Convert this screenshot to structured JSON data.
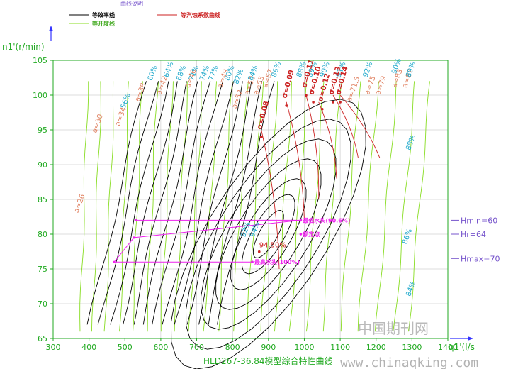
{
  "legend": {
    "header": "曲线说明",
    "efficiency": "等效率线",
    "opening": "等开度线",
    "cavitation": "等汽蚀系数曲线"
  },
  "colors": {
    "axis": "#22aa22",
    "efficiency": "#000000",
    "opening": "#88dd22",
    "cavitation": "#cc2222",
    "eff_label": "#22aacc",
    "open_label": "#e08060",
    "head": "#7755cc",
    "operating": "#ee22ee",
    "arrow": "#3333ff",
    "grid": "#bbbbbb"
  },
  "watermark": {
    "text": "中国期刊网",
    "url": "www.chinaqking.com"
  },
  "chart_data": {
    "type": "line",
    "title": "HLD267-36.84模型综合特性曲线",
    "xlabel": "q1'(l/s",
    "ylabel": "n1'(r/min)",
    "xlim": [
      300,
      1400
    ],
    "ylim": [
      65,
      105
    ],
    "xticks": [
      300,
      400,
      500,
      600,
      700,
      800,
      900,
      1000,
      1100,
      1200,
      1300,
      1400
    ],
    "yticks": [
      65,
      70,
      75,
      80,
      85,
      90,
      95,
      100,
      105
    ],
    "grid": true,
    "opening_labels": [
      {
        "text": "a=26",
        "x": 370,
        "y": 83
      },
      {
        "text": "a=30",
        "x": 420,
        "y": 94.5
      },
      {
        "text": "a=34",
        "x": 485,
        "y": 95.5
      },
      {
        "text": "a=38",
        "x": 540,
        "y": 99
      },
      {
        "text": "a=42",
        "x": 600,
        "y": 100
      },
      {
        "text": "a=46",
        "x": 680,
        "y": 101
      },
      {
        "text": "a=49",
        "x": 770,
        "y": 101
      },
      {
        "text": "a=52",
        "x": 810,
        "y": 98
      },
      {
        "text": "a=53",
        "x": 845,
        "y": 100
      },
      {
        "text": "a=55",
        "x": 870,
        "y": 100
      },
      {
        "text": "a=57",
        "x": 895,
        "y": 101
      },
      {
        "text": "a=71.5",
        "x": 1130,
        "y": 99
      },
      {
        "text": "a=75",
        "x": 1180,
        "y": 100
      },
      {
        "text": "a=79",
        "x": 1210,
        "y": 100
      },
      {
        "text": "a=83",
        "x": 1255,
        "y": 101
      },
      {
        "text": "a=87",
        "x": 1285,
        "y": 101
      }
    ],
    "efficiency_labels": [
      {
        "text": "56%",
        "x": 500,
        "y": 98
      },
      {
        "text": "60%",
        "x": 575,
        "y": 102
      },
      {
        "text": "64%",
        "x": 620,
        "y": 102.5
      },
      {
        "text": "68%",
        "x": 655,
        "y": 102
      },
      {
        "text": "71%",
        "x": 690,
        "y": 102
      },
      {
        "text": "74%",
        "x": 720,
        "y": 102
      },
      {
        "text": "77%",
        "x": 745,
        "y": 102
      },
      {
        "text": "80%",
        "x": 790,
        "y": 102
      },
      {
        "text": "82%",
        "x": 815,
        "y": 101.5
      },
      {
        "text": "84%",
        "x": 855,
        "y": 102
      },
      {
        "text": "86%",
        "x": 920,
        "y": 102.5
      },
      {
        "text": "88%",
        "x": 990,
        "y": 102.5
      },
      {
        "text": "89%",
        "x": 1020,
        "y": 102.5
      },
      {
        "text": "90%",
        "x": 1055,
        "y": 102.5
      },
      {
        "text": "91%",
        "x": 1100,
        "y": 102.5
      },
      {
        "text": "92%",
        "x": 1175,
        "y": 102.5
      },
      {
        "text": "90%",
        "x": 1255,
        "y": 103
      },
      {
        "text": "89%",
        "x": 1295,
        "y": 102.5
      },
      {
        "text": "88%",
        "x": 1295,
        "y": 92
      },
      {
        "text": "92%",
        "x": 835,
        "y": 79.5
      },
      {
        "text": "94%",
        "x": 860,
        "y": 79.5
      },
      {
        "text": "86%",
        "x": 1285,
        "y": 78.5
      },
      {
        "text": "84%",
        "x": 1295,
        "y": 71
      }
    ],
    "cavitation_labels": [
      {
        "text": "σ=0.08",
        "x": 880,
        "y": 95
      },
      {
        "text": "σ=0.09",
        "x": 950,
        "y": 99.5
      },
      {
        "text": "σ=0.11",
        "x": 1005,
        "y": 101
      },
      {
        "text": "σ=0.10",
        "x": 1025,
        "y": 100
      },
      {
        "text": "σ=0.12",
        "x": 1050,
        "y": 99
      },
      {
        "text": "σ=0.13",
        "x": 1080,
        "y": 100
      },
      {
        "text": "σ=0.14",
        "x": 1100,
        "y": 100
      }
    ],
    "peak": {
      "text": "94.50%",
      "x": 890,
      "y": 78.5
    },
    "operating_points": [
      {
        "text": "最低水头(90.6%)",
        "x": 990,
        "y": 82
      },
      {
        "text": "额定点",
        "x": 990,
        "y": 80
      },
      {
        "text": "最高水头(100%)",
        "x": 855,
        "y": 76
      }
    ],
    "operating_path": [
      {
        "x": 530,
        "y": 82
      },
      {
        "x": 990,
        "y": 82
      },
      {
        "x": 525,
        "y": 79.5
      },
      {
        "x": 470,
        "y": 76
      },
      {
        "x": 855,
        "y": 76
      }
    ],
    "head_lines": [
      {
        "text": "Hmin=60",
        "y": 82
      },
      {
        "text": "Hr=64",
        "y": 80
      },
      {
        "text": "Hmax=70",
        "y": 76.5
      }
    ]
  }
}
